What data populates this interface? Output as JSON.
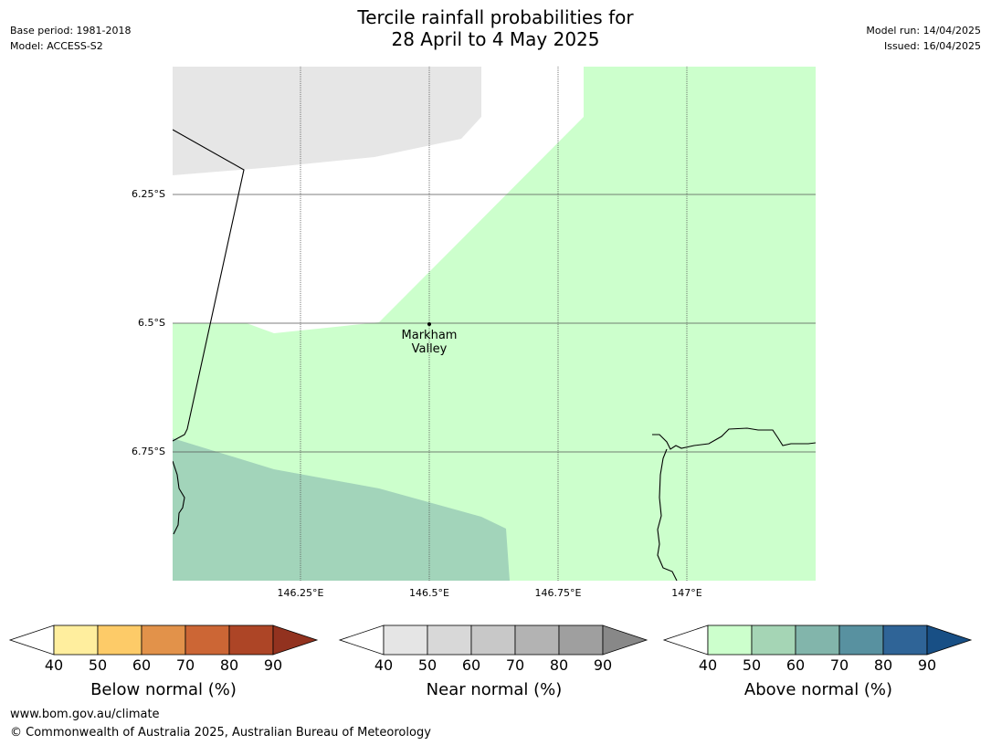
{
  "header": {
    "title_line1": "Tercile rainfall probabilities for",
    "title_line2": "28 April to 4 May 2025",
    "base_period": "Base period: 1981-2018",
    "model": "Model: ACCESS-S2",
    "model_run": "Model run: 14/04/2025",
    "issued": "Issued: 16/04/2025"
  },
  "map": {
    "latitude_labels": [
      "6.25°S",
      "6.5°S",
      "6.75°S"
    ],
    "longitude_labels": [
      "146.25°E",
      "146.5°E",
      "146.75°E",
      "147°E"
    ],
    "place": {
      "line1": "Markham",
      "line2": "Valley"
    },
    "colors": {
      "near_normal_40": "#e6e6e6",
      "above_normal_40": "#ccffcc",
      "above_normal_50": "#a2d4ba",
      "border": "#000000",
      "gridline": "#555555"
    }
  },
  "colorbars": [
    {
      "title": "Below normal (%)",
      "ticks": [
        "40",
        "50",
        "60",
        "70",
        "80",
        "90"
      ],
      "colors": [
        "#ffee9e",
        "#fdcb68",
        "#e2924a",
        "#cc6635",
        "#ad4526",
        "#92321f"
      ]
    },
    {
      "title": "Near normal (%)",
      "ticks": [
        "40",
        "50",
        "60",
        "70",
        "80",
        "90"
      ],
      "colors": [
        "#e5e5e5",
        "#d8d8d8",
        "#c8c8c8",
        "#b3b3b3",
        "#9f9f9f",
        "#888888"
      ]
    },
    {
      "title": "Above normal (%)",
      "ticks": [
        "40",
        "50",
        "60",
        "70",
        "80",
        "90"
      ],
      "colors": [
        "#ccffcc",
        "#a5d5b5",
        "#82b5ab",
        "#5891a0",
        "#2f6497",
        "#184f85"
      ]
    }
  ],
  "footer": {
    "website": "www.bom.gov.au/climate",
    "copyright": "© Commonwealth of Australia 2025, Australian Bureau of Meteorology"
  }
}
